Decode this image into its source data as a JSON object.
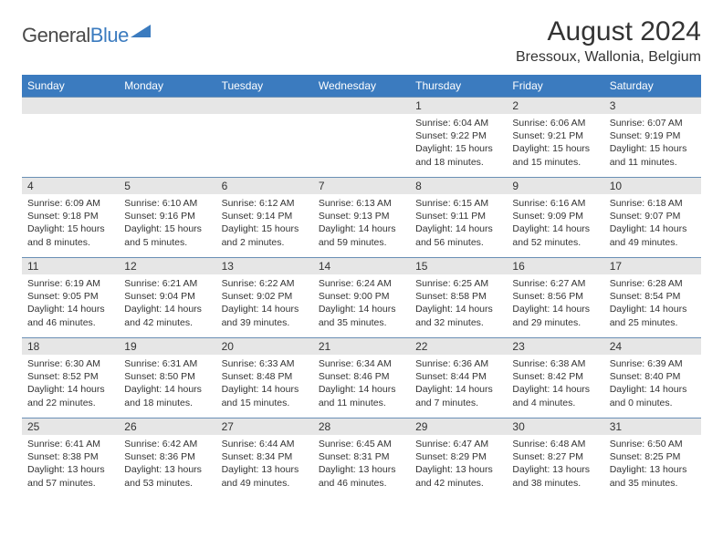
{
  "logo": {
    "text1": "General",
    "text2": "Blue"
  },
  "title": "August 2024",
  "location": "Bressoux, Wallonia, Belgium",
  "colors": {
    "header_bg": "#3b7bbf",
    "header_text": "#ffffff",
    "daynum_bg": "#e6e6e6",
    "border": "#6a8fb5",
    "text": "#333333",
    "logo_gray": "#4a4a4a",
    "logo_blue": "#3b7bbf"
  },
  "day_names": [
    "Sunday",
    "Monday",
    "Tuesday",
    "Wednesday",
    "Thursday",
    "Friday",
    "Saturday"
  ],
  "weeks": [
    [
      null,
      null,
      null,
      null,
      {
        "n": "1",
        "sr": "6:04 AM",
        "ss": "9:22 PM",
        "dl": "15 hours and 18 minutes."
      },
      {
        "n": "2",
        "sr": "6:06 AM",
        "ss": "9:21 PM",
        "dl": "15 hours and 15 minutes."
      },
      {
        "n": "3",
        "sr": "6:07 AM",
        "ss": "9:19 PM",
        "dl": "15 hours and 11 minutes."
      }
    ],
    [
      {
        "n": "4",
        "sr": "6:09 AM",
        "ss": "9:18 PM",
        "dl": "15 hours and 8 minutes."
      },
      {
        "n": "5",
        "sr": "6:10 AM",
        "ss": "9:16 PM",
        "dl": "15 hours and 5 minutes."
      },
      {
        "n": "6",
        "sr": "6:12 AM",
        "ss": "9:14 PM",
        "dl": "15 hours and 2 minutes."
      },
      {
        "n": "7",
        "sr": "6:13 AM",
        "ss": "9:13 PM",
        "dl": "14 hours and 59 minutes."
      },
      {
        "n": "8",
        "sr": "6:15 AM",
        "ss": "9:11 PM",
        "dl": "14 hours and 56 minutes."
      },
      {
        "n": "9",
        "sr": "6:16 AM",
        "ss": "9:09 PM",
        "dl": "14 hours and 52 minutes."
      },
      {
        "n": "10",
        "sr": "6:18 AM",
        "ss": "9:07 PM",
        "dl": "14 hours and 49 minutes."
      }
    ],
    [
      {
        "n": "11",
        "sr": "6:19 AM",
        "ss": "9:05 PM",
        "dl": "14 hours and 46 minutes."
      },
      {
        "n": "12",
        "sr": "6:21 AM",
        "ss": "9:04 PM",
        "dl": "14 hours and 42 minutes."
      },
      {
        "n": "13",
        "sr": "6:22 AM",
        "ss": "9:02 PM",
        "dl": "14 hours and 39 minutes."
      },
      {
        "n": "14",
        "sr": "6:24 AM",
        "ss": "9:00 PM",
        "dl": "14 hours and 35 minutes."
      },
      {
        "n": "15",
        "sr": "6:25 AM",
        "ss": "8:58 PM",
        "dl": "14 hours and 32 minutes."
      },
      {
        "n": "16",
        "sr": "6:27 AM",
        "ss": "8:56 PM",
        "dl": "14 hours and 29 minutes."
      },
      {
        "n": "17",
        "sr": "6:28 AM",
        "ss": "8:54 PM",
        "dl": "14 hours and 25 minutes."
      }
    ],
    [
      {
        "n": "18",
        "sr": "6:30 AM",
        "ss": "8:52 PM",
        "dl": "14 hours and 22 minutes."
      },
      {
        "n": "19",
        "sr": "6:31 AM",
        "ss": "8:50 PM",
        "dl": "14 hours and 18 minutes."
      },
      {
        "n": "20",
        "sr": "6:33 AM",
        "ss": "8:48 PM",
        "dl": "14 hours and 15 minutes."
      },
      {
        "n": "21",
        "sr": "6:34 AM",
        "ss": "8:46 PM",
        "dl": "14 hours and 11 minutes."
      },
      {
        "n": "22",
        "sr": "6:36 AM",
        "ss": "8:44 PM",
        "dl": "14 hours and 7 minutes."
      },
      {
        "n": "23",
        "sr": "6:38 AM",
        "ss": "8:42 PM",
        "dl": "14 hours and 4 minutes."
      },
      {
        "n": "24",
        "sr": "6:39 AM",
        "ss": "8:40 PM",
        "dl": "14 hours and 0 minutes."
      }
    ],
    [
      {
        "n": "25",
        "sr": "6:41 AM",
        "ss": "8:38 PM",
        "dl": "13 hours and 57 minutes."
      },
      {
        "n": "26",
        "sr": "6:42 AM",
        "ss": "8:36 PM",
        "dl": "13 hours and 53 minutes."
      },
      {
        "n": "27",
        "sr": "6:44 AM",
        "ss": "8:34 PM",
        "dl": "13 hours and 49 minutes."
      },
      {
        "n": "28",
        "sr": "6:45 AM",
        "ss": "8:31 PM",
        "dl": "13 hours and 46 minutes."
      },
      {
        "n": "29",
        "sr": "6:47 AM",
        "ss": "8:29 PM",
        "dl": "13 hours and 42 minutes."
      },
      {
        "n": "30",
        "sr": "6:48 AM",
        "ss": "8:27 PM",
        "dl": "13 hours and 38 minutes."
      },
      {
        "n": "31",
        "sr": "6:50 AM",
        "ss": "8:25 PM",
        "dl": "13 hours and 35 minutes."
      }
    ]
  ],
  "labels": {
    "sunrise": "Sunrise: ",
    "sunset": "Sunset: ",
    "daylight": "Daylight: "
  }
}
